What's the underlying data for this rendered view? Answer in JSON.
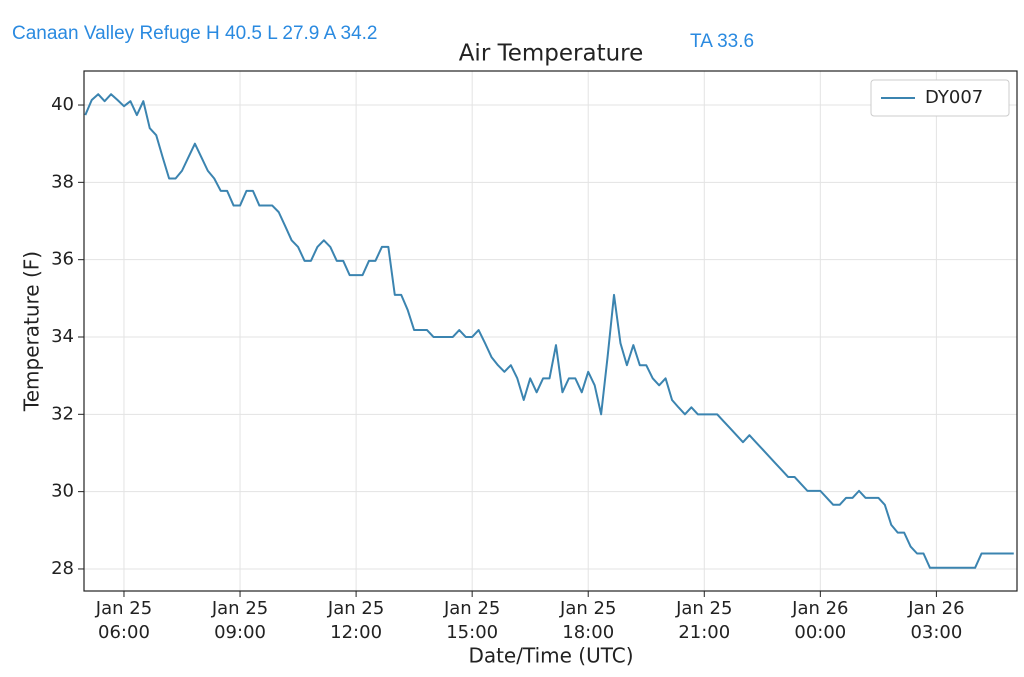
{
  "header": {
    "station": "Canaan Valley Refuge H 40.5 L 27.9 A 34.2",
    "ta": "TA 33.6"
  },
  "chart_data": {
    "type": "line",
    "title": "Air Temperature",
    "x_label": "Date/Time (UTC)",
    "y_label": "Temperature (F)",
    "x": [
      "Jan 25 05:00",
      "Jan 25 05:10",
      "Jan 25 05:20",
      "Jan 25 05:30",
      "Jan 25 05:40",
      "Jan 25 05:50",
      "Jan 25 06:00",
      "Jan 25 06:10",
      "Jan 25 06:20",
      "Jan 25 06:30",
      "Jan 25 06:40",
      "Jan 25 06:50",
      "Jan 25 07:00",
      "Jan 25 07:10",
      "Jan 25 07:20",
      "Jan 25 07:30",
      "Jan 25 07:40",
      "Jan 25 07:50",
      "Jan 25 08:00",
      "Jan 25 08:10",
      "Jan 25 08:20",
      "Jan 25 08:30",
      "Jan 25 08:40",
      "Jan 25 08:50",
      "Jan 25 09:00",
      "Jan 25 09:10",
      "Jan 25 09:20",
      "Jan 25 09:30",
      "Jan 25 09:40",
      "Jan 25 09:50",
      "Jan 25 10:00",
      "Jan 25 10:10",
      "Jan 25 10:20",
      "Jan 25 10:30",
      "Jan 25 10:40",
      "Jan 25 10:50",
      "Jan 25 11:00",
      "Jan 25 11:10",
      "Jan 25 11:20",
      "Jan 25 11:30",
      "Jan 25 11:40",
      "Jan 25 11:50",
      "Jan 25 12:00",
      "Jan 25 12:10",
      "Jan 25 12:20",
      "Jan 25 12:30",
      "Jan 25 12:40",
      "Jan 25 12:50",
      "Jan 25 13:00",
      "Jan 25 13:10",
      "Jan 25 13:20",
      "Jan 25 13:30",
      "Jan 25 13:40",
      "Jan 25 13:50",
      "Jan 25 14:00",
      "Jan 25 14:10",
      "Jan 25 14:20",
      "Jan 25 14:30",
      "Jan 25 14:40",
      "Jan 25 14:50",
      "Jan 25 15:00",
      "Jan 25 15:10",
      "Jan 25 15:20",
      "Jan 25 15:30",
      "Jan 25 15:40",
      "Jan 25 15:50",
      "Jan 25 16:00",
      "Jan 25 16:10",
      "Jan 25 16:20",
      "Jan 25 16:30",
      "Jan 25 16:40",
      "Jan 25 16:50",
      "Jan 25 17:00",
      "Jan 25 17:10",
      "Jan 25 17:20",
      "Jan 25 17:30",
      "Jan 25 17:40",
      "Jan 25 17:50",
      "Jan 25 18:00",
      "Jan 25 18:10",
      "Jan 25 18:20",
      "Jan 25 18:30",
      "Jan 25 18:40",
      "Jan 25 18:50",
      "Jan 25 19:00",
      "Jan 25 19:10",
      "Jan 25 19:20",
      "Jan 25 19:30",
      "Jan 25 19:40",
      "Jan 25 19:50",
      "Jan 25 20:00",
      "Jan 25 20:10",
      "Jan 25 20:20",
      "Jan 25 20:30",
      "Jan 25 20:40",
      "Jan 25 20:50",
      "Jan 25 21:00",
      "Jan 25 21:10",
      "Jan 25 21:20",
      "Jan 25 21:30",
      "Jan 25 21:40",
      "Jan 25 21:50",
      "Jan 25 22:00",
      "Jan 25 22:10",
      "Jan 25 22:20",
      "Jan 25 22:30",
      "Jan 25 22:40",
      "Jan 25 22:50",
      "Jan 25 23:00",
      "Jan 25 23:10",
      "Jan 25 23:20",
      "Jan 25 23:30",
      "Jan 25 23:40",
      "Jan 25 23:50",
      "Jan 26 00:00",
      "Jan 26 00:10",
      "Jan 26 00:20",
      "Jan 26 00:30",
      "Jan 26 00:40",
      "Jan 26 00:50",
      "Jan 26 01:00",
      "Jan 26 01:10",
      "Jan 26 01:20",
      "Jan 26 01:30",
      "Jan 26 01:40",
      "Jan 26 01:50",
      "Jan 26 02:00",
      "Jan 26 02:10",
      "Jan 26 02:20",
      "Jan 26 02:30",
      "Jan 26 02:40",
      "Jan 26 02:50",
      "Jan 26 03:00",
      "Jan 26 03:10",
      "Jan 26 03:20",
      "Jan 26 03:30",
      "Jan 26 03:40",
      "Jan 26 03:50",
      "Jan 26 04:00",
      "Jan 26 04:10",
      "Jan 26 04:20",
      "Jan 26 04:30",
      "Jan 26 04:40",
      "Jan 26 04:50",
      "Jan 26 05:00"
    ],
    "series": [
      {
        "name": "DY007",
        "color": "#3b84b0",
        "values": [
          39.74,
          40.13,
          40.28,
          40.1,
          40.28,
          40.13,
          39.97,
          40.1,
          39.74,
          40.1,
          39.4,
          39.22,
          38.65,
          38.1,
          38.1,
          38.3,
          38.65,
          39.0,
          38.65,
          38.3,
          38.1,
          37.78,
          37.78,
          37.4,
          37.4,
          37.78,
          37.78,
          37.4,
          37.4,
          37.4,
          37.23,
          36.87,
          36.5,
          36.33,
          35.97,
          35.97,
          36.33,
          36.5,
          36.33,
          35.97,
          35.97,
          35.6,
          35.6,
          35.6,
          35.97,
          35.97,
          36.33,
          36.33,
          35.09,
          35.09,
          34.7,
          34.18,
          34.18,
          34.18,
          34.0,
          34.0,
          34.0,
          34.0,
          34.18,
          34.0,
          34.0,
          34.18,
          33.84,
          33.48,
          33.27,
          33.1,
          33.27,
          32.93,
          32.37,
          32.93,
          32.57,
          32.93,
          32.93,
          33.79,
          32.57,
          32.93,
          32.93,
          32.57,
          33.1,
          32.75,
          32.0,
          33.48,
          35.09,
          33.84,
          33.27,
          33.79,
          33.27,
          33.27,
          32.93,
          32.75,
          32.93,
          32.37,
          32.18,
          32.0,
          32.18,
          32.0,
          32.0,
          32.0,
          32.0,
          31.82,
          31.64,
          31.46,
          31.28,
          31.46,
          31.28,
          31.1,
          30.92,
          30.74,
          30.56,
          30.38,
          30.38,
          30.2,
          30.02,
          30.02,
          30.02,
          29.84,
          29.66,
          29.66,
          29.84,
          29.84,
          30.02,
          29.84,
          29.84,
          29.84,
          29.66,
          29.14,
          28.94,
          28.94,
          28.58,
          28.4,
          28.4,
          28.03,
          28.03,
          28.03,
          28.03,
          28.03,
          28.03,
          28.03,
          28.03,
          28.4,
          28.4,
          28.4,
          28.4,
          28.4,
          28.4
        ]
      }
    ],
    "xlim": [
      "Jan 25 04:58",
      "Jan 26 05:05"
    ],
    "xticks": [
      "Jan 25 06:00",
      "Jan 25 09:00",
      "Jan 25 12:00",
      "Jan 25 15:00",
      "Jan 25 18:00",
      "Jan 25 21:00",
      "Jan 26 00:00",
      "Jan 26 03:00"
    ],
    "ylim": [
      27.43,
      40.88
    ],
    "yticks": [
      28,
      30,
      32,
      34,
      36,
      38,
      40
    ],
    "grid": true,
    "legend": "upper right"
  }
}
